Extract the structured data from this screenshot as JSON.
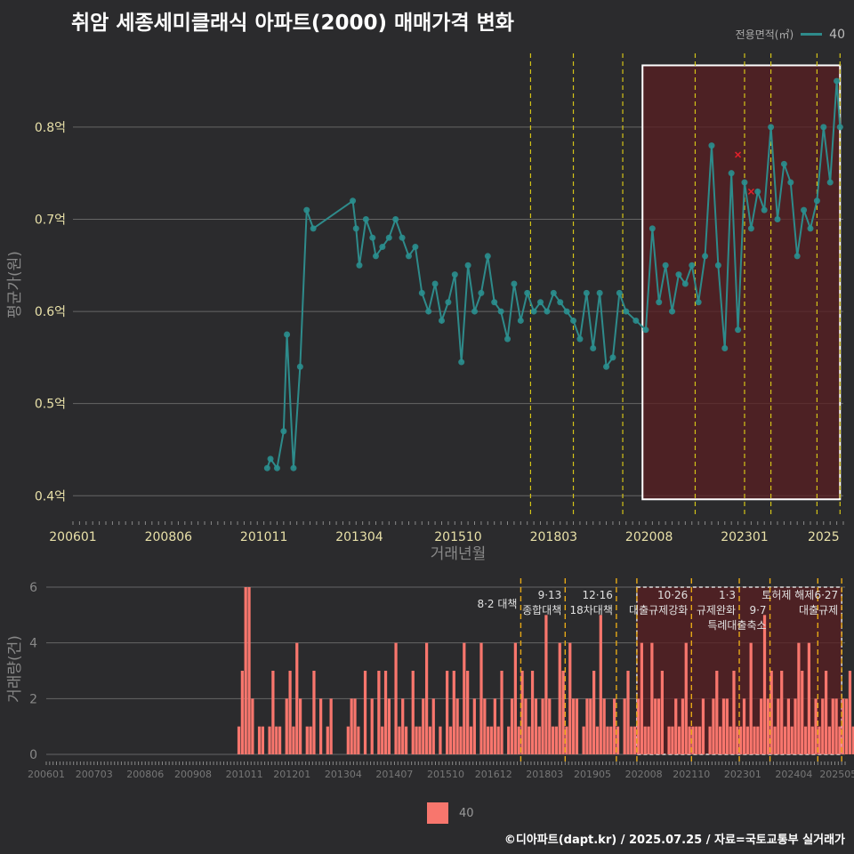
{
  "title": "취암 세종세미클래식 아파트(2000) 매매가격 변화",
  "legend_top": {
    "title": "전용면적(㎡)",
    "value": "40"
  },
  "legend_bottom": {
    "value": "40"
  },
  "source": "©디아파트(dapt.kr) / 2025.07.25 / 자료=국토교통부 실거래가",
  "colors": {
    "background": "#2b2b2d",
    "line": "#2e8b8b",
    "point": "#2a8f8f",
    "bar": "#f8766d",
    "highlight": "#5a1f22",
    "vline": "#d4c418",
    "vline_bar": "#e6a817",
    "grid": "#666666"
  },
  "chart_data": [
    {
      "type": "line",
      "xlabel": "거래년월",
      "ylabel": "평균가(원)",
      "x_ticks": [
        "200601",
        "200806",
        "201011",
        "201304",
        "201510",
        "201803",
        "202008",
        "202301",
        "2025"
      ],
      "y_ticks": [
        "0.4억",
        "0.5억",
        "0.6억",
        "0.7억",
        "0.8억"
      ],
      "ylim": [
        0.38,
        0.88
      ],
      "highlight_range": [
        "2020-06",
        "2025-06"
      ],
      "policy_lines": [
        "2017-08",
        "2018-09",
        "2019-12",
        "2021-10",
        "2023-01",
        "2023-09",
        "2024-11",
        "2025-06"
      ],
      "series": [
        {
          "name": "40",
          "x": [
            "2010-12",
            "2011-01",
            "2011-03",
            "2011-05",
            "2011-06",
            "2011-08",
            "2011-10",
            "2011-12",
            "2012-02",
            "2013-02",
            "2013-03",
            "2013-04",
            "2013-06",
            "2013-08",
            "2013-09",
            "2013-11",
            "2014-01",
            "2014-03",
            "2014-05",
            "2014-07",
            "2014-09",
            "2014-11",
            "2015-01",
            "2015-03",
            "2015-05",
            "2015-07",
            "2015-09",
            "2015-11",
            "2016-01",
            "2016-03",
            "2016-05",
            "2016-07",
            "2016-09",
            "2016-11",
            "2017-01",
            "2017-03",
            "2017-05",
            "2017-07",
            "2017-09",
            "2017-11",
            "2018-01",
            "2018-03",
            "2018-05",
            "2018-07",
            "2018-09",
            "2018-11",
            "2019-01",
            "2019-03",
            "2019-05",
            "2019-07",
            "2019-09",
            "2019-11",
            "2020-01",
            "2020-04",
            "2020-07",
            "2020-09",
            "2020-11",
            "2021-01",
            "2021-03",
            "2021-05",
            "2021-07",
            "2021-09",
            "2021-11",
            "2022-01",
            "2022-03",
            "2022-05",
            "2022-07",
            "2022-09",
            "2022-11",
            "2023-01",
            "2023-03",
            "2023-05",
            "2023-07",
            "2023-09",
            "2023-11",
            "2024-01",
            "2024-03",
            "2024-05",
            "2024-07",
            "2024-09",
            "2024-11",
            "2025-01",
            "2025-03",
            "2025-05",
            "2025-06"
          ],
          "y": [
            0.43,
            0.44,
            0.43,
            0.47,
            0.575,
            0.43,
            0.54,
            0.71,
            0.69,
            0.72,
            0.69,
            0.65,
            0.7,
            0.68,
            0.66,
            0.67,
            0.68,
            0.7,
            0.68,
            0.66,
            0.67,
            0.62,
            0.6,
            0.63,
            0.59,
            0.61,
            0.64,
            0.545,
            0.65,
            0.6,
            0.62,
            0.66,
            0.61,
            0.6,
            0.57,
            0.63,
            0.59,
            0.62,
            0.6,
            0.61,
            0.6,
            0.62,
            0.61,
            0.6,
            0.59,
            0.57,
            0.62,
            0.56,
            0.62,
            0.54,
            0.55,
            0.62,
            0.6,
            0.59,
            0.58,
            0.69,
            0.61,
            0.65,
            0.6,
            0.64,
            0.63,
            0.65,
            0.61,
            0.66,
            0.78,
            0.65,
            0.56,
            0.75,
            0.58,
            0.74,
            0.69,
            0.73,
            0.71,
            0.8,
            0.7,
            0.76,
            0.74,
            0.66,
            0.71,
            0.69,
            0.72,
            0.8,
            0.74,
            0.85,
            0.8
          ]
        },
        {
          "name": "outlier",
          "x": [
            "2022-11",
            "2023-03"
          ],
          "y": [
            0.77,
            0.73
          ]
        }
      ]
    },
    {
      "type": "bar",
      "ylabel": "거래량(건)",
      "y_ticks": [
        "0",
        "2",
        "4",
        "6"
      ],
      "ylim": [
        0,
        6
      ],
      "x_ticks": [
        "200601",
        "200703",
        "200806",
        "200908",
        "201011",
        "201201",
        "201304",
        "201407",
        "201510",
        "201612",
        "201803",
        "201905",
        "202008",
        "202110",
        "202301",
        "202404",
        "202505"
      ],
      "highlight_range": [
        "2020-06",
        "2025-06"
      ],
      "policy_lines": [
        {
          "date": "2017-08",
          "label": "8·2 대책"
        },
        {
          "date": "2018-09",
          "label": "9·13\n종합대책"
        },
        {
          "date": "2019-12",
          "label": "12·16\n18차대책"
        },
        {
          "date": "2020-06",
          "label": ""
        },
        {
          "date": "2021-10",
          "label": "10·26\n대출규제강화"
        },
        {
          "date": "2022-12",
          "label": "1·3\n규제완화"
        },
        {
          "date": "2023-09",
          "label": "9·7\n특례대출축소"
        },
        {
          "date": "2024-11",
          "label": "토허제 해제"
        },
        {
          "date": "2025-06",
          "label": "6·27\n대출규제"
        }
      ],
      "series": [
        {
          "name": "40",
          "x_start": "2010-09",
          "values": [
            1,
            3,
            6,
            6,
            2,
            0,
            1,
            1,
            0,
            1,
            3,
            1,
            1,
            0,
            2,
            3,
            1,
            4,
            2,
            0,
            1,
            1,
            3,
            0,
            2,
            0,
            1,
            2,
            0,
            0,
            0,
            0,
            1,
            2,
            2,
            1,
            0,
            3,
            0,
            2,
            0,
            3,
            1,
            3,
            2,
            0,
            4,
            1,
            2,
            1,
            0,
            3,
            1,
            1,
            2,
            4,
            1,
            2,
            0,
            1,
            0,
            3,
            1,
            3,
            2,
            1,
            4,
            3,
            1,
            2,
            0,
            4,
            2,
            1,
            1,
            2,
            1,
            3,
            0,
            1,
            2,
            4,
            1,
            3,
            2,
            1,
            3,
            2,
            1,
            2,
            5,
            2,
            1,
            1,
            4,
            3,
            1,
            4,
            2,
            2,
            0,
            1,
            2,
            2,
            3,
            1,
            5,
            2,
            1,
            1,
            2,
            1,
            0,
            2,
            3,
            1,
            1,
            2,
            4,
            1,
            1,
            4,
            2,
            2,
            3,
            0,
            1,
            1,
            2,
            1,
            2,
            4,
            1,
            1,
            1,
            1,
            2,
            0,
            1,
            2,
            3,
            1,
            2,
            2,
            1,
            3,
            1,
            1,
            2,
            1,
            4,
            1,
            1,
            2,
            5,
            2,
            3,
            1,
            2,
            3,
            1,
            2,
            1,
            2,
            4,
            3,
            1,
            4,
            1,
            2,
            1,
            2,
            3,
            1,
            2,
            2,
            1,
            2,
            2,
            3,
            1,
            2,
            1,
            5,
            2,
            1,
            2,
            1,
            3,
            1,
            1,
            2,
            2,
            1,
            4,
            1,
            2,
            1,
            1,
            2,
            1,
            3,
            1,
            1,
            1,
            2
          ]
        }
      ]
    }
  ]
}
